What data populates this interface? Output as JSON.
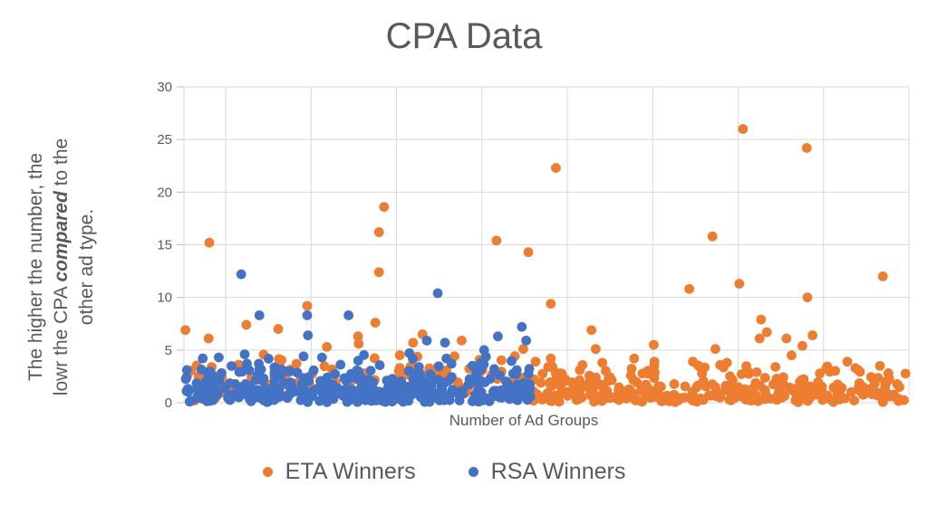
{
  "title": "CPA Data",
  "x_axis_label": "Number of Ad Groups",
  "y_axis_note": {
    "line1": "The higher the number, the",
    "line2_pre": "lowr the CPA ",
    "line2_emph": "compared",
    "line2_post": " to the",
    "line3": "other ad type."
  },
  "legend": [
    {
      "label": "ETA Winners",
      "color": "#ED7D31"
    },
    {
      "label": "RSA Winners",
      "color": "#4472C4"
    }
  ],
  "colors": {
    "background": "#FFFFFF",
    "text": "#595959",
    "gridline": "#D9D9D9",
    "tick": "#BFBFBF",
    "eta_orange": "#ED7D31",
    "rsa_blue": "#4472C4"
  },
  "chart_data": {
    "type": "scatter",
    "title": "CPA Data",
    "xlabel": "Number of Ad Groups",
    "ylabel_annotation": "The higher the number, the lowr the CPA compared to the other ad type.",
    "ylim": [
      0,
      30
    ],
    "y_ticks": [
      0,
      5,
      10,
      15,
      20,
      25,
      30
    ],
    "x_unit": "percent-of-axis (no x tick labels shown)",
    "grid": true,
    "legend_position": "bottom-center",
    "marker_radius_px": 5.4,
    "render_seed": 7,
    "series": [
      {
        "name": "ETA Winners",
        "color": "#ED7D31",
        "points": [
          [
            0.2,
            6.9
          ],
          [
            3.5,
            15.2
          ],
          [
            3.4,
            6.1
          ],
          [
            8.6,
            7.4
          ],
          [
            13.0,
            7.0
          ],
          [
            17.0,
            9.2
          ],
          [
            19.7,
            5.3
          ],
          [
            24.0,
            6.3
          ],
          [
            24.1,
            5.6
          ],
          [
            26.4,
            7.6
          ],
          [
            26.9,
            16.2
          ],
          [
            26.9,
            12.4
          ],
          [
            27.6,
            18.6
          ],
          [
            31.6,
            5.7
          ],
          [
            32.9,
            6.5
          ],
          [
            38.3,
            5.9
          ],
          [
            43.1,
            15.4
          ],
          [
            46.8,
            5.1
          ],
          [
            47.5,
            14.3
          ],
          [
            48.5,
            3.9
          ],
          [
            50.6,
            9.4
          ],
          [
            50.6,
            4.2
          ],
          [
            51.3,
            22.3
          ],
          [
            54.6,
            3.1
          ],
          [
            56.2,
            6.9
          ],
          [
            56.8,
            5.1
          ],
          [
            57.7,
            3.8
          ],
          [
            62.1,
            4.2
          ],
          [
            64.8,
            5.5
          ],
          [
            64.9,
            3.9
          ],
          [
            69.7,
            10.8
          ],
          [
            70.2,
            3.9
          ],
          [
            72.9,
            15.8
          ],
          [
            73.3,
            5.1
          ],
          [
            74.9,
            3.8
          ],
          [
            76.6,
            11.3
          ],
          [
            77.1,
            26.0
          ],
          [
            79.4,
            6.1
          ],
          [
            79.6,
            7.9
          ],
          [
            80.4,
            6.7
          ],
          [
            83.1,
            6.1
          ],
          [
            83.8,
            4.5
          ],
          [
            85.3,
            5.4
          ],
          [
            85.9,
            24.2
          ],
          [
            86.0,
            10.0
          ],
          [
            86.7,
            6.4
          ],
          [
            91.5,
            3.9
          ],
          [
            93.0,
            3.1
          ],
          [
            96.0,
            3.5
          ],
          [
            96.4,
            12.0
          ]
        ],
        "clouds": [
          {
            "count": 120,
            "x_range": [
              0.3,
              47.5
            ],
            "layers": [
              [
                0.25,
                0.1,
                1.0
              ],
              [
                0.35,
                1.0,
                2.3
              ],
              [
                0.28,
                2.3,
                3.5
              ],
              [
                0.12,
                3.5,
                4.6
              ]
            ]
          },
          {
            "count": 330,
            "x_range": [
              47.5,
              99.6
            ],
            "layers": [
              [
                0.52,
                0.05,
                1.0
              ],
              [
                0.27,
                1.0,
                2.0
              ],
              [
                0.15,
                2.0,
                3.0
              ],
              [
                0.06,
                3.0,
                3.6
              ]
            ]
          }
        ]
      },
      {
        "name": "RSA Winners",
        "color": "#4472C4",
        "points": [
          [
            4.8,
            4.3
          ],
          [
            7.9,
            12.2
          ],
          [
            10.4,
            8.3
          ],
          [
            16.5,
            4.4
          ],
          [
            17.0,
            8.3
          ],
          [
            17.1,
            6.4
          ],
          [
            22.7,
            8.3
          ],
          [
            31.1,
            4.7
          ],
          [
            33.5,
            5.9
          ],
          [
            35.0,
            10.4
          ],
          [
            36.0,
            5.7
          ],
          [
            36.2,
            4.2
          ],
          [
            36.9,
            3.7
          ],
          [
            41.4,
            5.0
          ],
          [
            42.8,
            3.2
          ],
          [
            43.3,
            6.3
          ],
          [
            45.9,
            3.1
          ],
          [
            46.6,
            7.2
          ],
          [
            47.2,
            5.9
          ]
        ],
        "clouds": [
          {
            "count": 410,
            "x_range": [
              0.2,
              47.8
            ],
            "layers": [
              [
                0.55,
                0.05,
                1.3
              ],
              [
                0.25,
                1.3,
                2.3
              ],
              [
                0.13,
                2.3,
                3.3
              ],
              [
                0.07,
                3.3,
                4.6
              ]
            ]
          }
        ]
      }
    ]
  }
}
